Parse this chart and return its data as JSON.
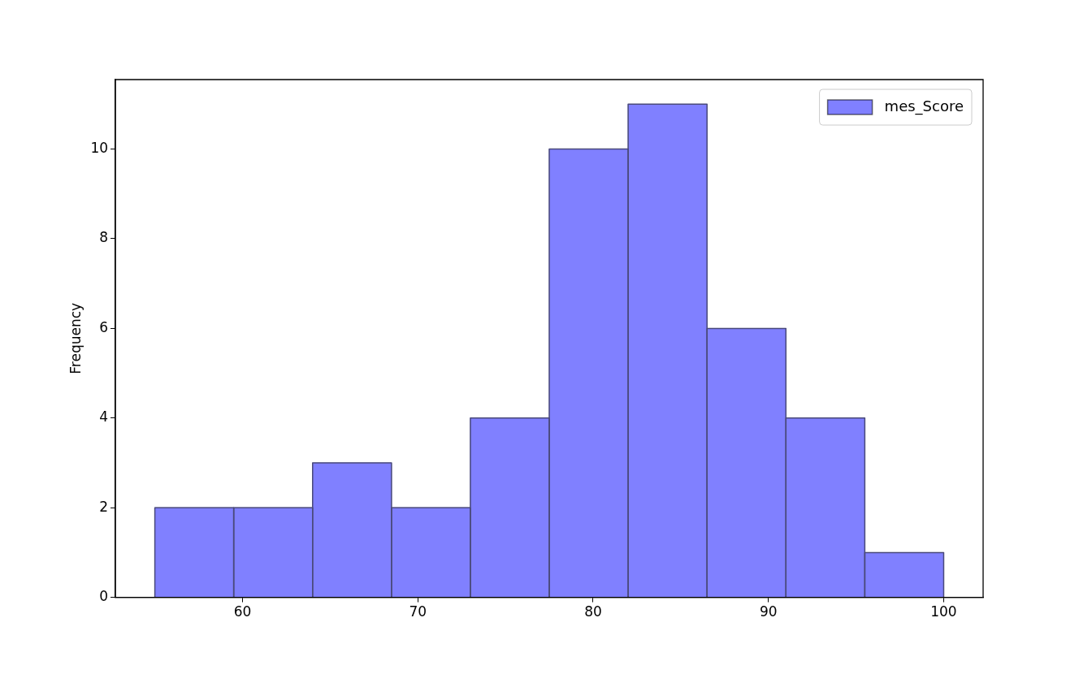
{
  "chart_data": {
    "type": "histogram",
    "ylabel": "Frequency",
    "bins": [
      55,
      59.5,
      64,
      68.5,
      73,
      77.5,
      82,
      86.5,
      91,
      95.5,
      100
    ],
    "series": [
      {
        "name": "mes_Score",
        "color": "#8080ff",
        "values": [
          2,
          2,
          3,
          2,
          4,
          10,
          11,
          6,
          4,
          1
        ]
      }
    ],
    "xlim": [
      52.75,
      102.25
    ],
    "xticks": [
      60,
      70,
      80,
      90,
      100
    ],
    "ylim": [
      0,
      11.55
    ],
    "yticks": [
      0,
      2,
      4,
      6,
      8,
      10
    ],
    "grid": false,
    "legend": "top right"
  }
}
